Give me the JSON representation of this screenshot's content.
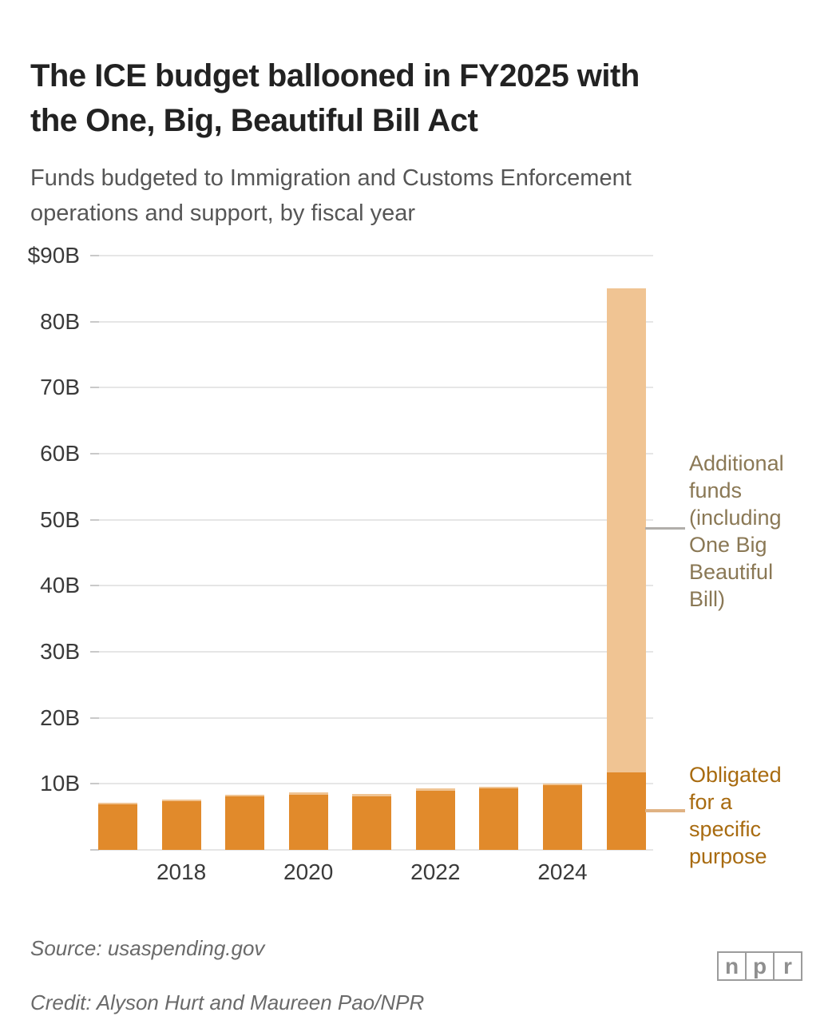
{
  "header": {
    "title": "The ICE budget ballooned in FY2025 with\nthe One, Big, Beautiful Bill Act",
    "subtitle": "Funds budgeted to Immigration and Customs Enforcement\noperations and support, by fiscal year"
  },
  "chart_data": {
    "type": "bar",
    "stacked": true,
    "x": [
      2017,
      2018,
      2019,
      2020,
      2021,
      2022,
      2023,
      2024,
      2025
    ],
    "series": [
      {
        "name": "Obligated for a specific purpose",
        "color": "#e18a2b",
        "values": [
          6.9,
          7.4,
          8.1,
          8.4,
          8.1,
          8.9,
          9.3,
          9.8,
          11.7
        ]
      },
      {
        "name": "Additional funds (including One Big Beautiful Bill)",
        "color": "#f0c493",
        "values": [
          0.2,
          0.2,
          0.2,
          0.3,
          0.4,
          0.4,
          0.3,
          0.2,
          73.4
        ]
      }
    ],
    "ylim": [
      0,
      90
    ],
    "grid": "horizontal",
    "y_ticks": [
      {
        "value": 90,
        "label": "$90B"
      },
      {
        "value": 80,
        "label": "80B"
      },
      {
        "value": 70,
        "label": "70B"
      },
      {
        "value": 60,
        "label": "60B"
      },
      {
        "value": 50,
        "label": "50B"
      },
      {
        "value": 40,
        "label": "40B"
      },
      {
        "value": 30,
        "label": "30B"
      },
      {
        "value": 20,
        "label": "20B"
      },
      {
        "value": 10,
        "label": "10B"
      },
      {
        "value": 0,
        "label": ""
      }
    ],
    "x_ticks": [
      {
        "label": "2018",
        "bar": 1
      },
      {
        "label": "2020",
        "bar": 3
      },
      {
        "label": "2022",
        "bar": 5
      },
      {
        "label": "2024",
        "bar": 7
      }
    ],
    "annotations": [
      {
        "text": "Additional\nfunds\n(including\nOne Big\nBeautiful\nBill)",
        "color": "#8a7855",
        "connector_color": "#b1aeaa"
      },
      {
        "text": "Obligated\nfor a\nspecific\npurpose",
        "color": "#a86b10",
        "connector_color": "#e0b283"
      }
    ]
  },
  "footer": {
    "source": "Source: usaspending.gov",
    "credit": "Credit: Alyson Hurt and Maureen Pao/NPR",
    "logo_letters": [
      "n",
      "p",
      "r"
    ]
  }
}
